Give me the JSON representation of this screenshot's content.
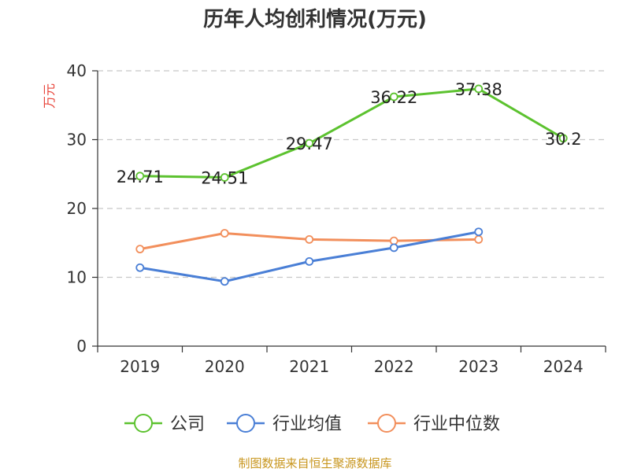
{
  "chart_data": {
    "type": "line",
    "title": "历年人均创利情况(万元)",
    "ylabel": "万元",
    "xlabel": "",
    "categories": [
      "2019",
      "2020",
      "2021",
      "2022",
      "2023",
      "2024"
    ],
    "ylim": [
      0,
      40
    ],
    "yticks": [
      0,
      10,
      20,
      30,
      40
    ],
    "grid": true,
    "legend_position": "bottom",
    "series": [
      {
        "name": "公司",
        "color": "#5cc22f",
        "values": [
          24.71,
          24.51,
          29.47,
          36.22,
          37.38,
          30.2
        ],
        "labels": [
          "24.71",
          "24.51",
          "29.47",
          "36.22",
          "37.38",
          "30.2"
        ]
      },
      {
        "name": "行业均值",
        "color": "#4a7fd6",
        "values": [
          11.4,
          9.4,
          12.3,
          14.3,
          16.6,
          null
        ]
      },
      {
        "name": "行业中位数",
        "color": "#f28f5c",
        "values": [
          14.1,
          16.4,
          15.5,
          15.3,
          15.5,
          null
        ]
      }
    ]
  },
  "source": "制图数据来自恒生聚源数据库"
}
